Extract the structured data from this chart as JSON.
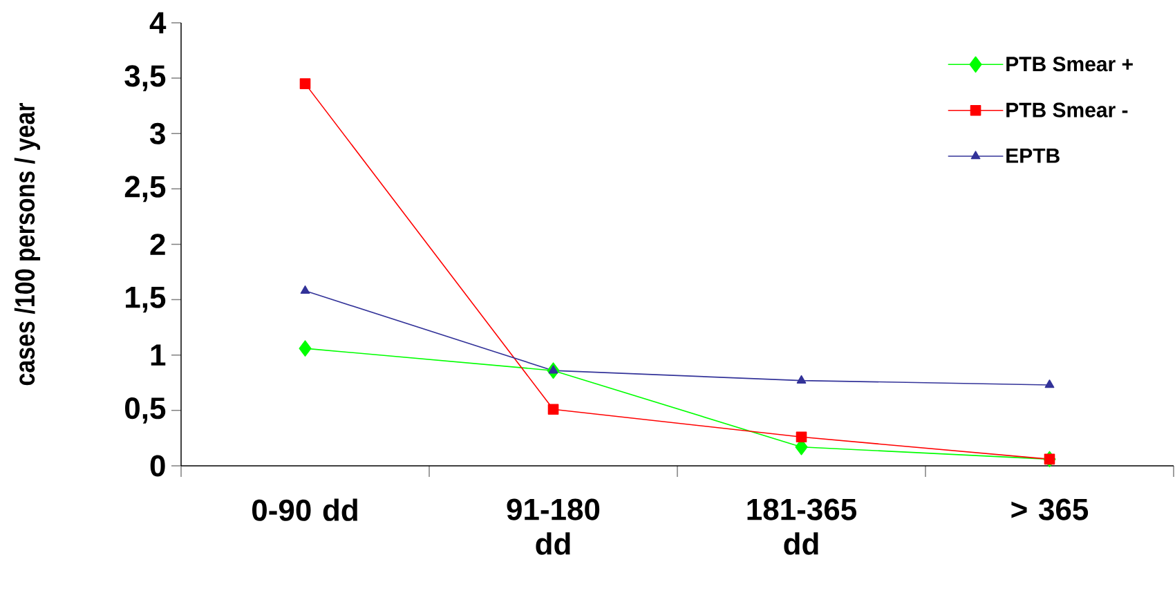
{
  "chart_data": {
    "type": "line",
    "ylabel": "cases /100 persons / year",
    "categories": [
      "0-90 dd",
      "91-180 dd",
      "181-365 dd",
      "> 365"
    ],
    "series": [
      {
        "name": "PTB Smear +",
        "color": "#00ff00",
        "marker": "diamond",
        "values": [
          1.06,
          0.86,
          0.17,
          0.06
        ]
      },
      {
        "name": "PTB Smear -",
        "color": "#ff0000",
        "marker": "square",
        "values": [
          3.45,
          0.51,
          0.26,
          0.06
        ]
      },
      {
        "name": "EPTB",
        "color": "#333399",
        "marker": "triangle",
        "values": [
          1.58,
          0.86,
          0.77,
          0.73
        ]
      }
    ],
    "ylim": [
      0,
      4
    ],
    "yticks": [
      0,
      {
        "value": 0.5,
        "label": "0,5"
      },
      1,
      {
        "value": 1.5,
        "label": "1,5"
      },
      2,
      {
        "value": 2.5,
        "label": "2,5"
      },
      3,
      {
        "value": 3.5,
        "label": "3,5"
      },
      4
    ],
    "grid": false,
    "legend": "top right",
    "line_style": "solid"
  }
}
